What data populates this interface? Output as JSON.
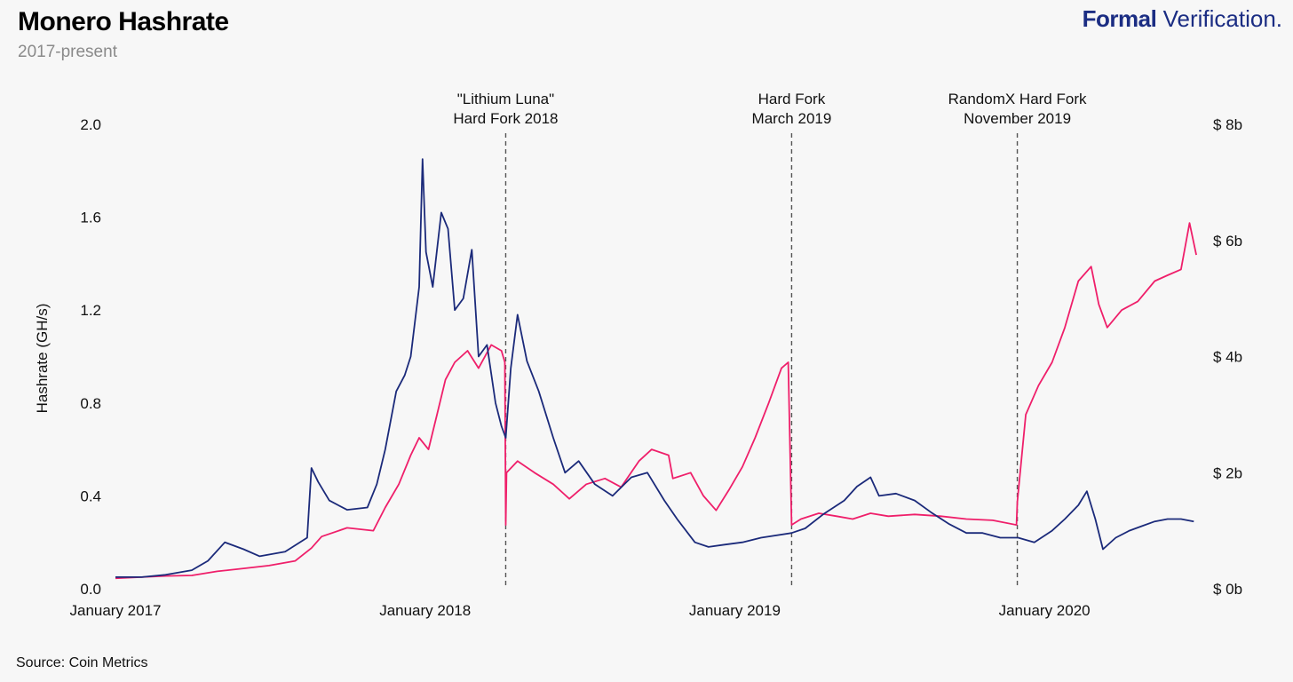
{
  "header": {
    "title": "Monero Hashrate",
    "subtitle": "2017-present",
    "brand_bold": "Formal",
    "brand_regular": "Verification."
  },
  "footer": {
    "source": "Source: Coin Metrics"
  },
  "colors": {
    "hashrate": "#1b2a7a",
    "market_cap": "#ef1f6a",
    "annotation": "#555555",
    "background": "#f7f7f7"
  },
  "chart_data": {
    "type": "line",
    "title": "Monero Hashrate",
    "subtitle": "2017-present",
    "xlabel": "",
    "ylabel": "Hashrate (GH/s)",
    "y2label": "",
    "xlim": [
      "2017-01-01",
      "2020-06-30"
    ],
    "ylim": [
      0,
      2.0
    ],
    "y2lim": [
      0,
      8
    ],
    "grid": false,
    "legend": "none",
    "x_ticks": [
      {
        "date": "2017-01-01",
        "label": "January 2017"
      },
      {
        "date": "2018-01-01",
        "label": "January 2018"
      },
      {
        "date": "2019-01-01",
        "label": "January 2019"
      },
      {
        "date": "2020-01-01",
        "label": "January 2020"
      }
    ],
    "y_ticks": [
      {
        "value": 0.0,
        "label": "0.0"
      },
      {
        "value": 0.4,
        "label": "0.4"
      },
      {
        "value": 0.8,
        "label": "0.8"
      },
      {
        "value": 1.2,
        "label": "1.2"
      },
      {
        "value": 1.6,
        "label": "1.6"
      },
      {
        "value": 2.0,
        "label": "2.0"
      }
    ],
    "y2_ticks": [
      {
        "value": 0,
        "label": "$ 0b"
      },
      {
        "value": 2,
        "label": "$ 2b"
      },
      {
        "value": 4,
        "label": "$ 4b"
      },
      {
        "value": 6,
        "label": "$ 6b"
      },
      {
        "value": 8,
        "label": "$ 8b"
      }
    ],
    "annotations": [
      {
        "date": "2018-04-06",
        "lines": [
          "\"Lithium Luna\"",
          "Hard Fork 2018"
        ]
      },
      {
        "date": "2019-03-09",
        "lines": [
          "Hard Fork",
          "March 2019"
        ]
      },
      {
        "date": "2019-11-30",
        "lines": [
          "RandomX Hard Fork",
          "November 2019"
        ]
      }
    ],
    "series": [
      {
        "axis": "left",
        "color": "#1b2a7a",
        "points": [
          [
            "2017-01-01",
            0.05
          ],
          [
            "2017-02-01",
            0.05
          ],
          [
            "2017-03-01",
            0.06
          ],
          [
            "2017-04-01",
            0.08
          ],
          [
            "2017-04-20",
            0.12
          ],
          [
            "2017-05-10",
            0.2
          ],
          [
            "2017-06-01",
            0.17
          ],
          [
            "2017-06-20",
            0.14
          ],
          [
            "2017-07-20",
            0.16
          ],
          [
            "2017-08-15",
            0.22
          ],
          [
            "2017-08-20",
            0.52
          ],
          [
            "2017-08-28",
            0.46
          ],
          [
            "2017-09-10",
            0.38
          ],
          [
            "2017-10-01",
            0.34
          ],
          [
            "2017-10-25",
            0.35
          ],
          [
            "2017-11-05",
            0.45
          ],
          [
            "2017-11-15",
            0.6
          ],
          [
            "2017-11-28",
            0.85
          ],
          [
            "2017-12-08",
            0.92
          ],
          [
            "2017-12-15",
            1.0
          ],
          [
            "2017-12-25",
            1.3
          ],
          [
            "2017-12-29",
            1.85
          ],
          [
            "2018-01-02",
            1.45
          ],
          [
            "2018-01-10",
            1.3
          ],
          [
            "2018-01-20",
            1.62
          ],
          [
            "2018-01-28",
            1.55
          ],
          [
            "2018-02-05",
            1.2
          ],
          [
            "2018-02-15",
            1.25
          ],
          [
            "2018-02-25",
            1.46
          ],
          [
            "2018-03-05",
            1.0
          ],
          [
            "2018-03-15",
            1.05
          ],
          [
            "2018-03-25",
            0.8
          ],
          [
            "2018-04-01",
            0.7
          ],
          [
            "2018-04-06",
            0.65
          ],
          [
            "2018-04-12",
            0.95
          ],
          [
            "2018-04-20",
            1.18
          ],
          [
            "2018-05-01",
            0.98
          ],
          [
            "2018-05-15",
            0.85
          ],
          [
            "2018-06-01",
            0.65
          ],
          [
            "2018-06-15",
            0.5
          ],
          [
            "2018-07-01",
            0.55
          ],
          [
            "2018-07-20",
            0.45
          ],
          [
            "2018-08-10",
            0.4
          ],
          [
            "2018-09-01",
            0.48
          ],
          [
            "2018-09-20",
            0.5
          ],
          [
            "2018-10-10",
            0.38
          ],
          [
            "2018-10-25",
            0.3
          ],
          [
            "2018-11-15",
            0.2
          ],
          [
            "2018-12-01",
            0.18
          ],
          [
            "2018-12-20",
            0.19
          ],
          [
            "2019-01-10",
            0.2
          ],
          [
            "2019-02-01",
            0.22
          ],
          [
            "2019-03-09",
            0.24
          ],
          [
            "2019-03-25",
            0.26
          ],
          [
            "2019-04-15",
            0.32
          ],
          [
            "2019-05-10",
            0.38
          ],
          [
            "2019-05-25",
            0.44
          ],
          [
            "2019-06-10",
            0.48
          ],
          [
            "2019-06-20",
            0.4
          ],
          [
            "2019-07-10",
            0.41
          ],
          [
            "2019-08-01",
            0.38
          ],
          [
            "2019-08-20",
            0.33
          ],
          [
            "2019-09-10",
            0.28
          ],
          [
            "2019-10-01",
            0.24
          ],
          [
            "2019-10-20",
            0.24
          ],
          [
            "2019-11-10",
            0.22
          ],
          [
            "2019-12-01",
            0.22
          ],
          [
            "2019-12-20",
            0.2
          ],
          [
            "2020-01-10",
            0.25
          ],
          [
            "2020-01-25",
            0.3
          ],
          [
            "2020-02-10",
            0.36
          ],
          [
            "2020-02-20",
            0.42
          ],
          [
            "2020-03-01",
            0.3
          ],
          [
            "2020-03-10",
            0.17
          ],
          [
            "2020-03-25",
            0.22
          ],
          [
            "2020-04-10",
            0.25
          ],
          [
            "2020-04-25",
            0.27
          ],
          [
            "2020-05-10",
            0.29
          ],
          [
            "2020-05-25",
            0.3
          ],
          [
            "2020-06-10",
            0.3
          ],
          [
            "2020-06-25",
            0.29
          ]
        ]
      },
      {
        "axis": "right",
        "color": "#ef1f6a",
        "points": [
          [
            "2017-01-01",
            0.18
          ],
          [
            "2017-02-01",
            0.2
          ],
          [
            "2017-03-01",
            0.22
          ],
          [
            "2017-04-01",
            0.23
          ],
          [
            "2017-05-01",
            0.3
          ],
          [
            "2017-06-01",
            0.35
          ],
          [
            "2017-07-01",
            0.4
          ],
          [
            "2017-08-01",
            0.48
          ],
          [
            "2017-08-20",
            0.7
          ],
          [
            "2017-09-01",
            0.9
          ],
          [
            "2017-10-01",
            1.05
          ],
          [
            "2017-11-01",
            1.0
          ],
          [
            "2017-11-15",
            1.4
          ],
          [
            "2017-12-01",
            1.8
          ],
          [
            "2017-12-15",
            2.3
          ],
          [
            "2017-12-25",
            2.6
          ],
          [
            "2018-01-05",
            2.4
          ],
          [
            "2018-01-15",
            3.0
          ],
          [
            "2018-01-25",
            3.6
          ],
          [
            "2018-02-05",
            3.9
          ],
          [
            "2018-02-20",
            4.1
          ],
          [
            "2018-03-05",
            3.8
          ],
          [
            "2018-03-20",
            4.2
          ],
          [
            "2018-04-01",
            4.1
          ],
          [
            "2018-04-05",
            3.9
          ],
          [
            "2018-04-06",
            1.1
          ],
          [
            "2018-04-07",
            2.0
          ],
          [
            "2018-04-20",
            2.2
          ],
          [
            "2018-05-10",
            2.0
          ],
          [
            "2018-06-01",
            1.8
          ],
          [
            "2018-06-20",
            1.55
          ],
          [
            "2018-07-10",
            1.8
          ],
          [
            "2018-08-01",
            1.9
          ],
          [
            "2018-08-20",
            1.75
          ],
          [
            "2018-09-10",
            2.2
          ],
          [
            "2018-09-25",
            2.4
          ],
          [
            "2018-10-15",
            2.3
          ],
          [
            "2018-10-20",
            1.9
          ],
          [
            "2018-11-10",
            2.0
          ],
          [
            "2018-11-25",
            1.6
          ],
          [
            "2018-12-10",
            1.35
          ],
          [
            "2018-12-25",
            1.7
          ],
          [
            "2019-01-10",
            2.1
          ],
          [
            "2019-01-25",
            2.6
          ],
          [
            "2019-02-10",
            3.2
          ],
          [
            "2019-02-25",
            3.8
          ],
          [
            "2019-03-05",
            3.9
          ],
          [
            "2019-03-09",
            1.1
          ],
          [
            "2019-03-20",
            1.2
          ],
          [
            "2019-04-10",
            1.3
          ],
          [
            "2019-05-01",
            1.25
          ],
          [
            "2019-05-20",
            1.2
          ],
          [
            "2019-06-10",
            1.3
          ],
          [
            "2019-07-01",
            1.25
          ],
          [
            "2019-08-01",
            1.28
          ],
          [
            "2019-09-01",
            1.25
          ],
          [
            "2019-10-01",
            1.2
          ],
          [
            "2019-11-01",
            1.18
          ],
          [
            "2019-11-29",
            1.1
          ],
          [
            "2019-11-30",
            1.5
          ],
          [
            "2019-12-10",
            3.0
          ],
          [
            "2019-12-25",
            3.5
          ],
          [
            "2020-01-10",
            3.9
          ],
          [
            "2020-01-25",
            4.5
          ],
          [
            "2020-02-10",
            5.3
          ],
          [
            "2020-02-25",
            5.55
          ],
          [
            "2020-03-05",
            4.9
          ],
          [
            "2020-03-15",
            4.5
          ],
          [
            "2020-04-01",
            4.8
          ],
          [
            "2020-04-20",
            4.95
          ],
          [
            "2020-05-10",
            5.3
          ],
          [
            "2020-05-25",
            5.4
          ],
          [
            "2020-06-10",
            5.5
          ],
          [
            "2020-06-20",
            6.3
          ],
          [
            "2020-06-28",
            5.75
          ]
        ]
      }
    ]
  }
}
